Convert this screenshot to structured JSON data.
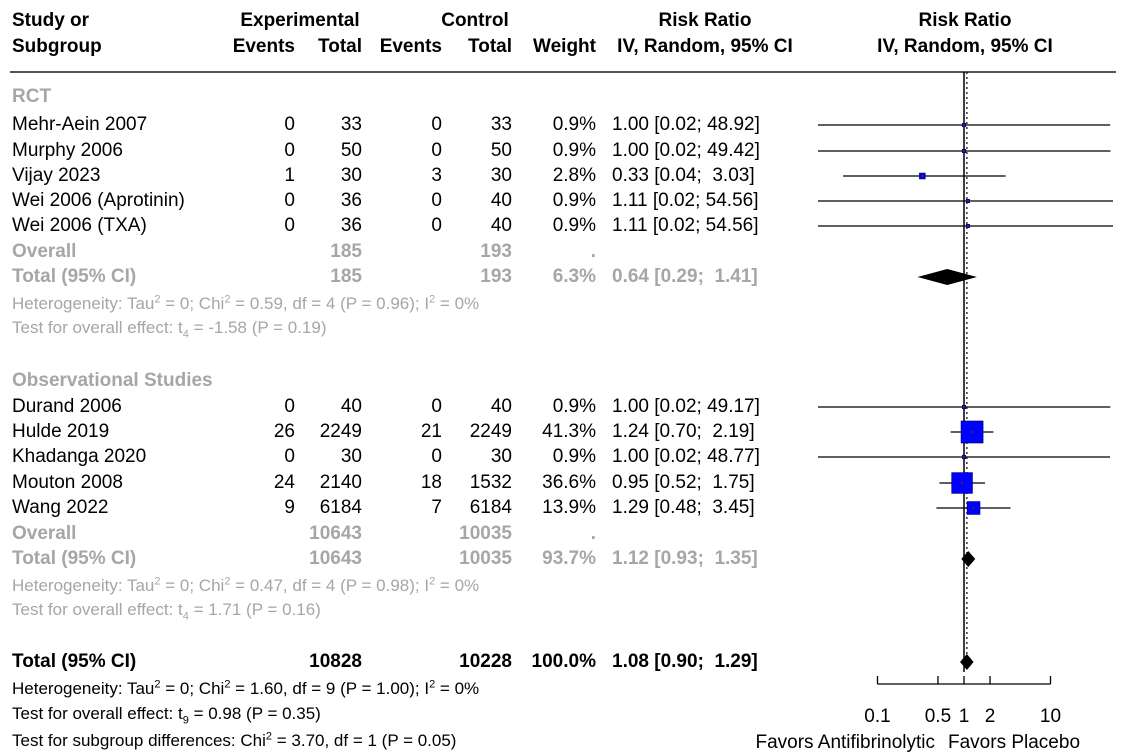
{
  "header": {
    "study_l1": "Study or",
    "study_l2": "Subgroup",
    "experimental": "Experimental",
    "control": "Control",
    "events": "Events",
    "total": "Total",
    "events2": "Events",
    "total2": "Total",
    "weight": "Weight",
    "rr_l1": "Risk Ratio",
    "rr_l2": "IV, Random, 95% CI",
    "plot_l1": "Risk Ratio",
    "plot_l2": "IV, Random, 95% CI"
  },
  "groups": [
    {
      "name": "RCT",
      "studies": [
        {
          "study": "Mehr-Aein 2007",
          "e_events": "0",
          "e_total": "33",
          "c_events": "0",
          "c_total": "33",
          "weight": "0.9%",
          "ci": "1.00 [0.02; 48.92]"
        },
        {
          "study": "Murphy 2006",
          "e_events": "0",
          "e_total": "50",
          "c_events": "0",
          "c_total": "50",
          "weight": "0.9%",
          "ci": "1.00 [0.02; 49.42]"
        },
        {
          "study": "Vijay 2023",
          "e_events": "1",
          "e_total": "30",
          "c_events": "3",
          "c_total": "30",
          "weight": "2.8%",
          "ci": "0.33 [0.04;  3.03]"
        },
        {
          "study": "Wei 2006 (Aprotinin)",
          "e_events": "0",
          "e_total": "36",
          "c_events": "0",
          "c_total": "40",
          "weight": "0.9%",
          "ci": "1.11 [0.02; 54.56]"
        },
        {
          "study": "Wei 2006 (TXA)",
          "e_events": "0",
          "e_total": "36",
          "c_events": "0",
          "c_total": "40",
          "weight": "0.9%",
          "ci": "1.11 [0.02; 54.56]"
        }
      ],
      "overall_label": "Overall",
      "overall_e_total": "185",
      "overall_c_total": "193",
      "overall_dot": ".",
      "total_label": "Total (95% CI)",
      "total_e_total": "185",
      "total_c_total": "193",
      "total_weight": "6.3%",
      "total_ci": "0.64 [0.29;  1.41]",
      "het_pre": "Heterogeneity: Tau",
      "het_mid": " = 0; Chi",
      "het_post": " = 0.59, df = 4 (P = 0.96); I",
      "het_end": " = 0%",
      "test_pre": "Test for overall effect: t",
      "test_sub": "4",
      "test_post": " = -1.58 (P = 0.19)"
    },
    {
      "name": "Observational Studies",
      "studies": [
        {
          "study": "Durand 2006",
          "e_events": "0",
          "e_total": "40",
          "c_events": "0",
          "c_total": "40",
          "weight": "0.9%",
          "ci": "1.00 [0.02; 49.17]"
        },
        {
          "study": "Hulde 2019",
          "e_events": "26",
          "e_total": "2249",
          "c_events": "21",
          "c_total": "2249",
          "weight": "41.3%",
          "ci": "1.24 [0.70;  2.19]"
        },
        {
          "study": "Khadanga 2020",
          "e_events": "0",
          "e_total": "30",
          "c_events": "0",
          "c_total": "30",
          "weight": "0.9%",
          "ci": "1.00 [0.02; 48.77]"
        },
        {
          "study": "Mouton 2008",
          "e_events": "24",
          "e_total": "2140",
          "c_events": "18",
          "c_total": "1532",
          "weight": "36.6%",
          "ci": "0.95 [0.52;  1.75]"
        },
        {
          "study": "Wang 2022",
          "e_events": "9",
          "e_total": "6184",
          "c_events": "7",
          "c_total": "6184",
          "weight": "13.9%",
          "ci": "1.29 [0.48;  3.45]"
        }
      ],
      "overall_label": "Overall",
      "overall_e_total": "10643",
      "overall_c_total": "10035",
      "overall_dot": ".",
      "total_label": "Total (95% CI)",
      "total_e_total": "10643",
      "total_c_total": "10035",
      "total_weight": "93.7%",
      "total_ci": "1.12 [0.93;  1.35]",
      "het_pre": "Heterogeneity: Tau",
      "het_mid": " = 0; Chi",
      "het_post": " = 0.47, df = 4 (P = 0.98); I",
      "het_end": " = 0%",
      "test_pre": "Test for overall effect: t",
      "test_sub": "4",
      "test_post": " = 1.71 (P = 0.16)"
    }
  ],
  "grand_total": {
    "label": "Total (95% CI)",
    "e_total": "10828",
    "c_total": "10228",
    "weight": "100.0%",
    "ci": "1.08 [0.90;  1.29]",
    "het_pre": "Heterogeneity: Tau",
    "het_mid": " = 0; Chi",
    "het_post": " = 1.60, df = 9 (P = 1.00); I",
    "het_end": " = 0%",
    "test_pre": "Test for overall effect: t",
    "test_sub": "9",
    "test_post": " = 0.98 (P = 0.35)",
    "subgroup_pre": "Test for subgroup differences: Chi",
    "subgroup_post": " = 3.70, df = 1 (P = 0.05)"
  },
  "superscript": "2",
  "colors": {
    "text": "#000000",
    "muted": "#a6a6a6",
    "study_square": "#0000ff",
    "diamond": "#000000"
  },
  "chart_data": {
    "type": "forest",
    "scale": "log",
    "axis_ticks": [
      0.1,
      0.5,
      1,
      2,
      10
    ],
    "axis_tick_labels": [
      "0.1",
      "0.5",
      "1",
      "2",
      "10"
    ],
    "xlim": [
      0.1,
      10
    ],
    "null_value": 1,
    "pooled_reference": 1.08,
    "favors_left": "Favors Antifibrinolytic",
    "favors_right": "Favors Placebo",
    "studies": [
      {
        "study": "Mehr-Aein 2007",
        "rr": 1.0,
        "lo": 0.02,
        "hi": 48.92,
        "weight": 0.9
      },
      {
        "study": "Murphy 2006",
        "rr": 1.0,
        "lo": 0.02,
        "hi": 49.42,
        "weight": 0.9
      },
      {
        "study": "Vijay 2023",
        "rr": 0.33,
        "lo": 0.04,
        "hi": 3.03,
        "weight": 2.8
      },
      {
        "study": "Wei 2006 (Aprotinin)",
        "rr": 1.11,
        "lo": 0.02,
        "hi": 54.56,
        "weight": 0.9
      },
      {
        "study": "Wei 2006 (TXA)",
        "rr": 1.11,
        "lo": 0.02,
        "hi": 54.56,
        "weight": 0.9
      },
      {
        "study": "Durand 2006",
        "rr": 1.0,
        "lo": 0.02,
        "hi": 49.17,
        "weight": 0.9
      },
      {
        "study": "Hulde 2019",
        "rr": 1.24,
        "lo": 0.7,
        "hi": 2.19,
        "weight": 41.3
      },
      {
        "study": "Khadanga 2020",
        "rr": 1.0,
        "lo": 0.02,
        "hi": 48.77,
        "weight": 0.9
      },
      {
        "study": "Mouton 2008",
        "rr": 0.95,
        "lo": 0.52,
        "hi": 1.75,
        "weight": 36.6
      },
      {
        "study": "Wang 2022",
        "rr": 1.29,
        "lo": 0.48,
        "hi": 3.45,
        "weight": 13.9
      }
    ],
    "pooled": [
      {
        "label": "RCT Total (95% CI)",
        "rr": 0.64,
        "lo": 0.29,
        "hi": 1.41
      },
      {
        "label": "Observational Studies Total (95% CI)",
        "rr": 1.12,
        "lo": 0.93,
        "hi": 1.35
      },
      {
        "label": "Total (95% CI)",
        "rr": 1.08,
        "lo": 0.9,
        "hi": 1.29
      }
    ]
  }
}
